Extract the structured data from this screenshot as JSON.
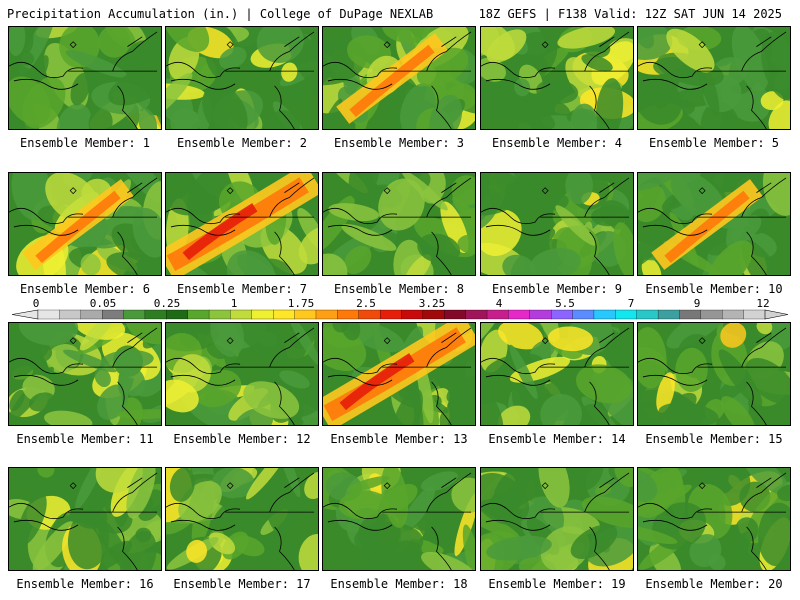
{
  "header": {
    "left": "Precipitation Accumulation (in.) | College of DuPage NEXLAB",
    "right": "18Z GEFS | F138 Valid: 12Z SAT JUN 14 2025"
  },
  "panels": [
    {
      "label": "Ensemble Member: 1"
    },
    {
      "label": "Ensemble Member: 2"
    },
    {
      "label": "Ensemble Member: 3"
    },
    {
      "label": "Ensemble Member: 4"
    },
    {
      "label": "Ensemble Member: 5"
    },
    {
      "label": "Ensemble Member: 6"
    },
    {
      "label": "Ensemble Member: 7"
    },
    {
      "label": "Ensemble Member: 8"
    },
    {
      "label": "Ensemble Member: 9"
    },
    {
      "label": "Ensemble Member: 10"
    },
    {
      "label": "Ensemble Member: 11"
    },
    {
      "label": "Ensemble Member: 12"
    },
    {
      "label": "Ensemble Member: 13"
    },
    {
      "label": "Ensemble Member: 14"
    },
    {
      "label": "Ensemble Member: 15"
    },
    {
      "label": "Ensemble Member: 16"
    },
    {
      "label": "Ensemble Member: 17"
    },
    {
      "label": "Ensemble Member: 18"
    },
    {
      "label": "Ensemble Member: 19"
    },
    {
      "label": "Ensemble Member: 20"
    }
  ],
  "colorbar": {
    "labels": [
      "0",
      "0.05",
      "0.25",
      "1",
      "1.75",
      "2.5",
      "3.25",
      "4",
      "5.5",
      "7",
      "9",
      "12"
    ],
    "colors": [
      "#e6e6e6",
      "#c8c8c8",
      "#aaaaaa",
      "#7d7d7d",
      "#4a9a3c",
      "#2e7d23",
      "#1e6a16",
      "#59a62c",
      "#8cc43e",
      "#c0dc3c",
      "#f0f032",
      "#ffe628",
      "#ffc81e",
      "#ffa014",
      "#ff780a",
      "#f04b0a",
      "#e61e0a",
      "#c80a0a",
      "#a00a0a",
      "#820a28",
      "#a0145a",
      "#c81e8c",
      "#e628c8",
      "#b43cdc",
      "#8c64ff",
      "#5a8cff",
      "#28c8ff",
      "#14e6f0",
      "#28c8c8",
      "#3ca0a0",
      "#787878",
      "#969696",
      "#b4b4b4",
      "#d2d2d2"
    ]
  }
}
